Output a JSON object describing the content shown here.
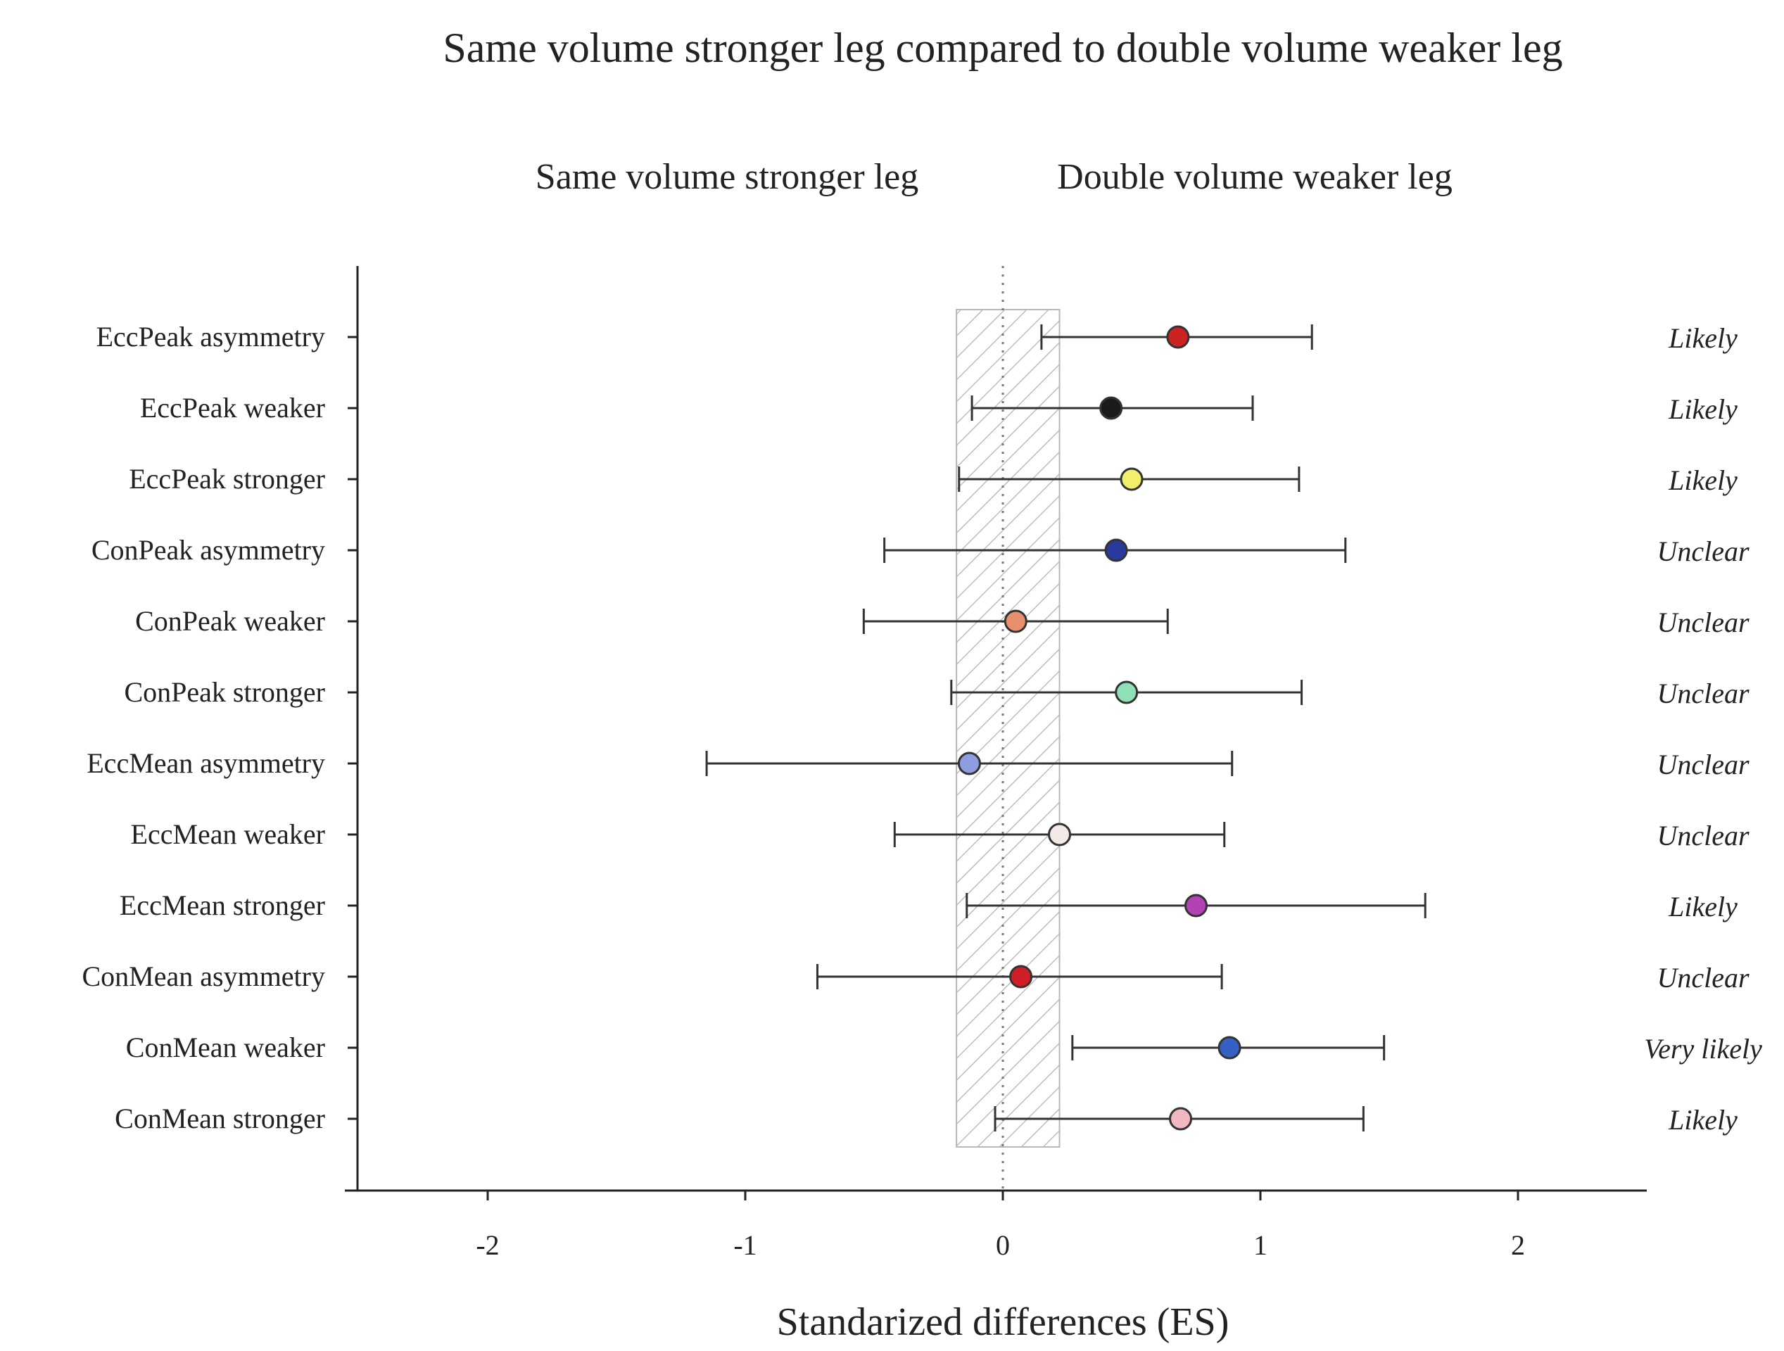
{
  "chart_data": {
    "type": "forest",
    "title": "Same volume stronger leg compared to double volume weaker leg",
    "left_side_label": "Same volume stronger leg",
    "right_side_label": "Double volume weaker leg",
    "xlabel": "Standarized differences (ES)",
    "xlim": [
      -2.5,
      2.5
    ],
    "xticks": [
      -2,
      -1,
      0,
      1,
      2
    ],
    "xtick_labels": [
      "-2",
      "-1",
      "0",
      "1",
      "2"
    ],
    "trivial_zone": [
      -0.18,
      0.22
    ],
    "rows": [
      {
        "label": "EccPeak asymmetry",
        "es": 0.68,
        "lower": 0.15,
        "upper": 1.2,
        "color": "#cc2222",
        "verdict": "Likely"
      },
      {
        "label": "EccPeak weaker",
        "es": 0.42,
        "lower": -0.12,
        "upper": 0.97,
        "color": "#1a1a1a",
        "verdict": "Likely"
      },
      {
        "label": "EccPeak stronger",
        "es": 0.5,
        "lower": -0.17,
        "upper": 1.15,
        "color": "#f2ef6a",
        "verdict": "Likely"
      },
      {
        "label": "ConPeak asymmetry",
        "es": 0.44,
        "lower": -0.46,
        "upper": 1.33,
        "color": "#2a3a9c",
        "verdict": "Unclear"
      },
      {
        "label": "ConPeak weaker",
        "es": 0.05,
        "lower": -0.54,
        "upper": 0.64,
        "color": "#e8906e",
        "verdict": "Unclear"
      },
      {
        "label": "ConPeak stronger",
        "es": 0.48,
        "lower": -0.2,
        "upper": 1.16,
        "color": "#8fe0b4",
        "verdict": "Unclear"
      },
      {
        "label": "EccMean asymmetry",
        "es": -0.13,
        "lower": -1.15,
        "upper": 0.89,
        "color": "#8d9de0",
        "verdict": "Unclear"
      },
      {
        "label": "EccMean weaker",
        "es": 0.22,
        "lower": -0.42,
        "upper": 0.86,
        "color": "#f3e9e6",
        "verdict": "Unclear"
      },
      {
        "label": "EccMean stronger",
        "es": 0.75,
        "lower": -0.14,
        "upper": 1.64,
        "color": "#b143b5",
        "verdict": "Likely"
      },
      {
        "label": "ConMean asymmetry",
        "es": 0.07,
        "lower": -0.72,
        "upper": 0.85,
        "color": "#d11e26",
        "verdict": "Unclear"
      },
      {
        "label": "ConMean weaker",
        "es": 0.88,
        "lower": 0.27,
        "upper": 1.48,
        "color": "#3561c4",
        "verdict": "Very likely"
      },
      {
        "label": "ConMean stronger",
        "es": 0.69,
        "lower": -0.03,
        "upper": 1.4,
        "color": "#f2b8c0",
        "verdict": "Likely"
      }
    ]
  }
}
